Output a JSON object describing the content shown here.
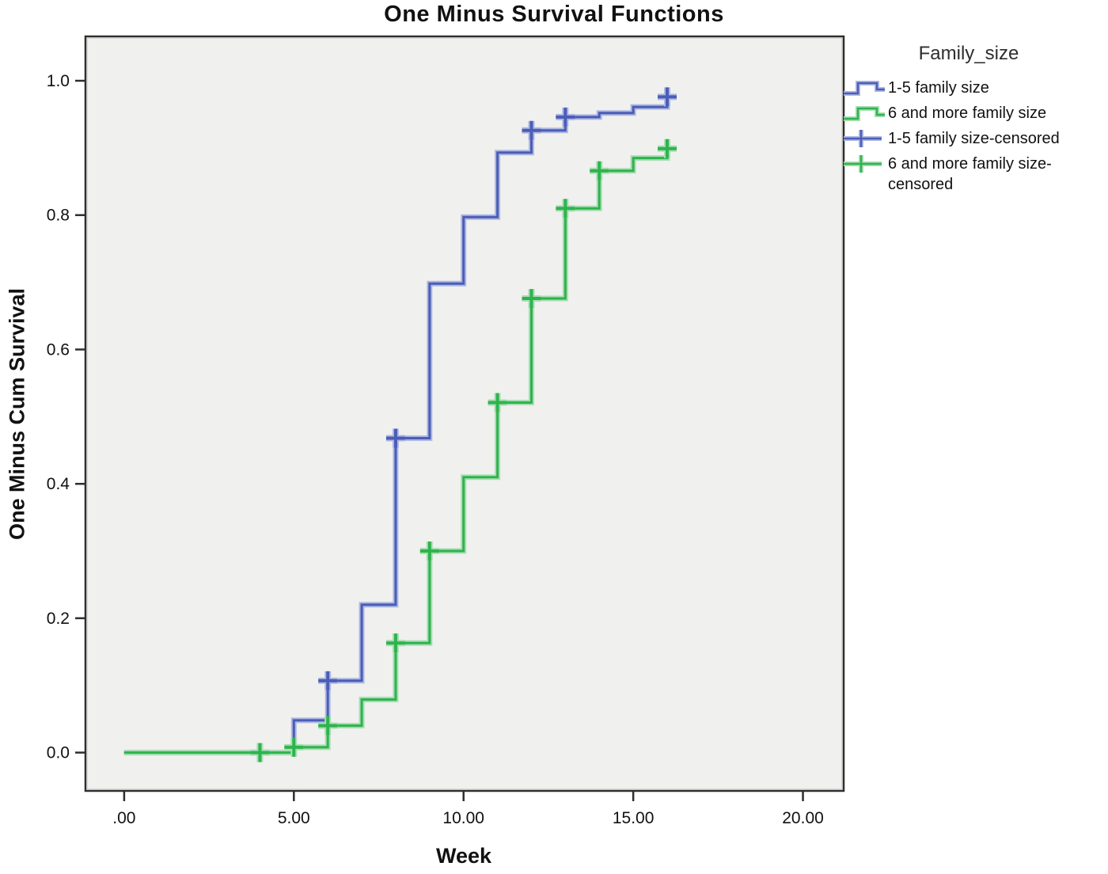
{
  "colors": {
    "blue": "#4a5db8",
    "blue_halo": "#aeb8e0",
    "green": "#2db44c",
    "green_halo": "#aadcb5",
    "panel_bg": "#f0f0ee",
    "panel_border": "#2e2e2e",
    "panel_bevel": "#cfcfcd",
    "text": "#111111"
  },
  "chart_data": {
    "type": "line",
    "subtype": "step-survival-function",
    "title": "One Minus Survival Functions",
    "xlabel": "Week",
    "ylabel": "One Minus Cum Survival",
    "xlim": [
      -1.14,
      21.2
    ],
    "ylim": [
      -0.057,
      1.066
    ],
    "grid": false,
    "x_ticks": [
      {
        "value": 0,
        "label": ".00"
      },
      {
        "value": 5,
        "label": "5.00"
      },
      {
        "value": 10,
        "label": "10.00"
      },
      {
        "value": 15,
        "label": "15.00"
      },
      {
        "value": 20,
        "label": "20.00"
      }
    ],
    "y_ticks": [
      {
        "value": 0.0,
        "label": "0.0"
      },
      {
        "value": 0.2,
        "label": "0.2"
      },
      {
        "value": 0.4,
        "label": "0.4"
      },
      {
        "value": 0.6,
        "label": "0.6"
      },
      {
        "value": 0.8,
        "label": "0.8"
      },
      {
        "value": 1.0,
        "label": "1.0"
      }
    ],
    "series": [
      {
        "name": "1-5 family size",
        "color_key": "blue",
        "start": [
          0,
          0
        ],
        "end_x": 16.05,
        "steps": [
          [
            5,
            0.048
          ],
          [
            6,
            0.107
          ],
          [
            7,
            0.22
          ],
          [
            8,
            0.468
          ],
          [
            9,
            0.698
          ],
          [
            10,
            0.797
          ],
          [
            11,
            0.893
          ],
          [
            12,
            0.926
          ],
          [
            13,
            0.946
          ],
          [
            14,
            0.952
          ],
          [
            15,
            0.961
          ],
          [
            16,
            0.976
          ]
        ],
        "censored": [
          [
            6,
            0.107
          ],
          [
            8,
            0.468
          ],
          [
            12,
            0.926
          ],
          [
            13,
            0.946
          ],
          [
            16,
            0.976
          ]
        ]
      },
      {
        "name": "6 and more family size",
        "color_key": "green",
        "start": [
          0,
          0
        ],
        "end_x": 16.05,
        "steps": [
          [
            5,
            0.008
          ],
          [
            6,
            0.04
          ],
          [
            7,
            0.079
          ],
          [
            8,
            0.163
          ],
          [
            9,
            0.3
          ],
          [
            10,
            0.41
          ],
          [
            11,
            0.521
          ],
          [
            12,
            0.676
          ],
          [
            13,
            0.81
          ],
          [
            14,
            0.866
          ],
          [
            15,
            0.885
          ],
          [
            16,
            0.899
          ]
        ],
        "censored": [
          [
            4,
            0.0
          ],
          [
            5,
            0.008
          ],
          [
            6,
            0.04
          ],
          [
            8,
            0.163
          ],
          [
            9,
            0.3
          ],
          [
            11,
            0.521
          ],
          [
            12,
            0.676
          ],
          [
            13,
            0.81
          ],
          [
            14,
            0.866
          ],
          [
            16,
            0.899
          ]
        ]
      }
    ],
    "legend": {
      "title": "Family_size",
      "position": "right",
      "items": [
        {
          "label": "1-5 family size",
          "type": "line",
          "color_key": "blue"
        },
        {
          "label": "6 and more family size",
          "type": "line",
          "color_key": "green"
        },
        {
          "label": "1-5 family size-censored",
          "type": "censored-marker",
          "color_key": "blue"
        },
        {
          "label": "6 and more family size-censored",
          "type": "censored-marker",
          "color_key": "green"
        }
      ]
    }
  }
}
